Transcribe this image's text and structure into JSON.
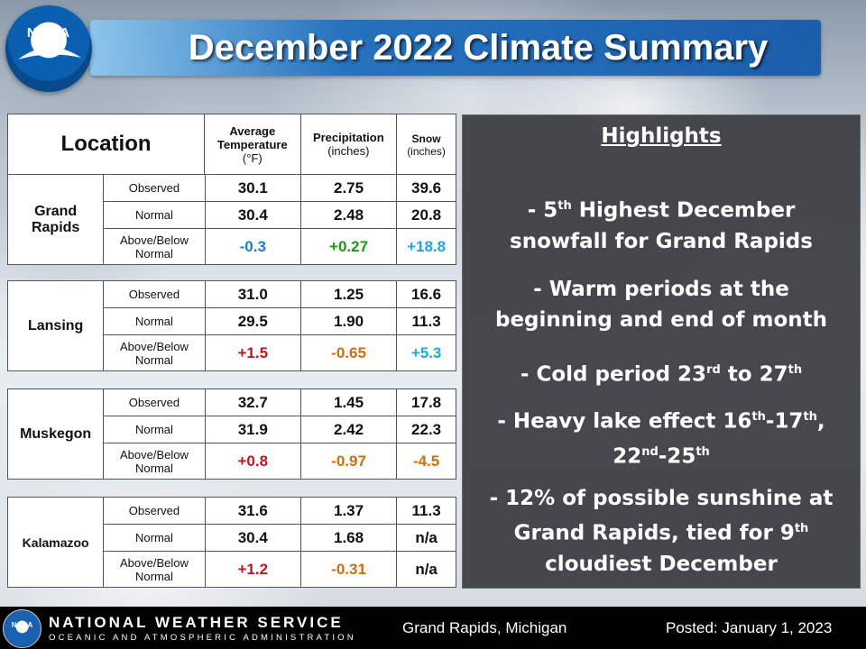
{
  "title": "December 2022 Climate Summary",
  "logo_text": "NOAA",
  "table": {
    "header": {
      "location": "Location",
      "temp_label": "Average Temperature",
      "temp_unit": "(°F)",
      "precip_label": "Precipitation",
      "precip_unit": "(inches)",
      "snow_label": "Snow",
      "snow_unit": "(inches)"
    },
    "row_labels": {
      "observed": "Observed",
      "normal": "Normal",
      "departure_line1": "Above/Below",
      "departure_line2": "Normal"
    },
    "locations": [
      {
        "name_line1": "Grand",
        "name_line2": "Rapids",
        "observed": {
          "temp": "30.1",
          "precip": "2.75",
          "snow": "39.6"
        },
        "normal": {
          "temp": "30.4",
          "precip": "2.48",
          "snow": "20.8"
        },
        "departure": {
          "temp": "-0.3",
          "precip": "+0.27",
          "snow": "+18.8"
        }
      },
      {
        "name_line1": "Lansing",
        "name_line2": "",
        "observed": {
          "temp": "31.0",
          "precip": "1.25",
          "snow": "16.6"
        },
        "normal": {
          "temp": "29.5",
          "precip": "1.90",
          "snow": "11.3"
        },
        "departure": {
          "temp": "+1.5",
          "precip": "-0.65",
          "snow": "+5.3"
        }
      },
      {
        "name_line1": "Muskegon",
        "name_line2": "",
        "observed": {
          "temp": "32.7",
          "precip": "1.45",
          "snow": "17.8"
        },
        "normal": {
          "temp": "31.9",
          "precip": "2.42",
          "snow": "22.3"
        },
        "departure": {
          "temp": "+0.8",
          "precip": "-0.97",
          "snow": "-4.5"
        }
      },
      {
        "name_line1": "Kalamazoo",
        "name_line2": "",
        "observed": {
          "temp": "31.6",
          "precip": "1.37",
          "snow": "11.3"
        },
        "normal": {
          "temp": "30.4",
          "precip": "1.68",
          "snow": "n/a"
        },
        "departure": {
          "temp": "+1.2",
          "precip": "-0.31",
          "snow": "n/a"
        }
      }
    ]
  },
  "highlights": {
    "title": "Highlights",
    "item1_a": "- 5",
    "item1_sup": "th",
    "item1_b": " Highest December",
    "item1_c": "snowfall for Grand Rapids",
    "item2_a": "- Warm periods at the",
    "item2_b": "beginning and end of month",
    "item3_a": "- Cold period 23",
    "item3_sup1": "rd",
    "item3_b": " to 27",
    "item3_sup2": "th",
    "item4_a": "- Heavy lake effect 16",
    "item4_sup1": "th",
    "item4_b": "-17",
    "item4_sup2": "th",
    "item4_c": ",",
    "item4_d": "22",
    "item4_sup3": "nd",
    "item4_e": "-25",
    "item4_sup4": "th",
    "item5_a": "- 12% of possible sunshine at",
    "item5_b": "Grand Rapids, tied for 9",
    "item5_sup": "th",
    "item5_c": "cloudiest December"
  },
  "footer": {
    "logo_text": "NOAA",
    "agency": "NATIONAL WEATHER SERVICE",
    "parent": "OCEANIC AND ATMOSPHERIC ADMINISTRATION",
    "office": "Grand Rapids, Michigan",
    "posted": "Posted: January 1, 2023"
  },
  "colors": {
    "title_bar": "#1e6ebe",
    "negative_temp": "#1f7bc9",
    "positive_temp": "#c0171c",
    "positive_precip": "#1a9a1a",
    "negative_precip": "#d06d0a",
    "positive_snow": "#1fa8e0",
    "negative_snow": "#d06d0a"
  }
}
